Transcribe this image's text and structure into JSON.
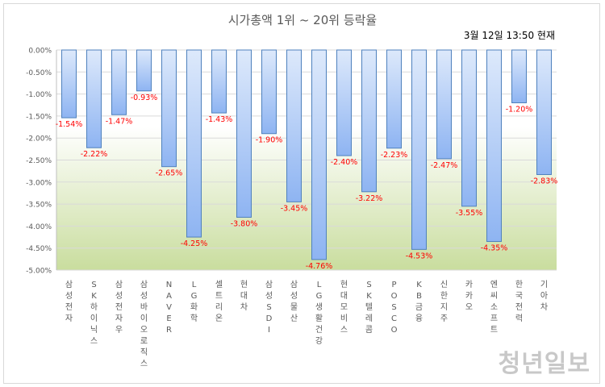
{
  "title": "시가총액 1위 ~ 20위 등락율",
  "timestamp": "3월 12일 13:50 현재",
  "watermark": "청년일보",
  "colors": {
    "bar_top": "#dde9fb",
    "bar_bottom": "#8eb4f2",
    "bar_stroke": "#4f81bd",
    "label": "#ff0000",
    "bg_top": "#ffffff",
    "bg_bottom": "#c9dd9e",
    "grid": "#d9d9d9",
    "axis_text": "#595959"
  },
  "chart_data": {
    "type": "bar",
    "ylim": [
      -5.0,
      0.0
    ],
    "grid": true,
    "y_ticks": [
      "0.00%",
      "-0.50%",
      "-1.00%",
      "-1.50%",
      "-2.00%",
      "-2.50%",
      "-3.00%",
      "-3.50%",
      "-4.00%",
      "-4.50%",
      "-5.00%"
    ],
    "categories": [
      "삼성전자",
      "SK하이닉스",
      "삼성전자우",
      "삼성바이오로직스",
      "NAVER",
      "LG화학",
      "셀트리온",
      "현대차",
      "삼성SDI",
      "삼성물산",
      "LG생활건강",
      "현대모비스",
      "SK텔레콤",
      "POSCO",
      "KB금융",
      "신한지주",
      "카카오",
      "엔씨소프트",
      "한국전력",
      "기아차"
    ],
    "values": [
      -1.54,
      -2.22,
      -1.47,
      -0.93,
      -2.65,
      -4.25,
      -1.43,
      -3.8,
      -1.9,
      -3.45,
      -4.76,
      -2.4,
      -3.22,
      -2.23,
      -4.53,
      -2.47,
      -3.55,
      -4.35,
      -1.2,
      -2.83
    ],
    "labels": [
      "-1.54%",
      "-2.22%",
      "-1.47%",
      "-0.93%",
      "-2.65%",
      "-4.25%",
      "-1.43%",
      "-3.80%",
      "-1.90%",
      "-3.45%",
      "-4.76%",
      "-2.40%",
      "-3.22%",
      "-2.23%",
      "-4.53%",
      "-2.47%",
      "-3.55%",
      "-4.35%",
      "-1.20%",
      "-2.83%"
    ]
  }
}
